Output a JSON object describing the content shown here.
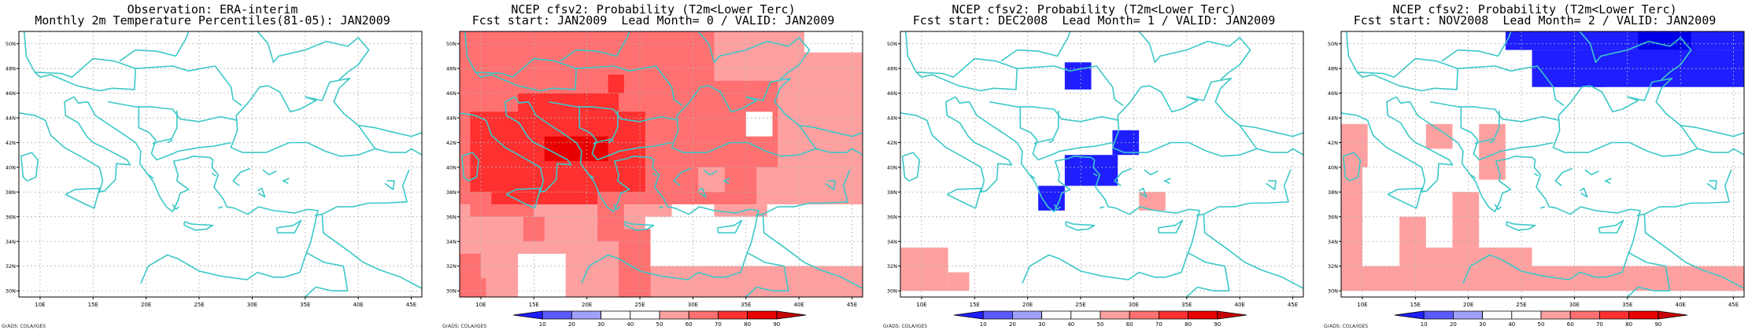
{
  "figure": {
    "credit": "GrADS: COLA/IGES",
    "colors": {
      "coast": "#3cc8c8",
      "grid": "#b4b4b4",
      "map_bg": "#ffffff"
    },
    "axes": {
      "lon_labels": [
        "10E",
        "15E",
        "20E",
        "25E",
        "30E",
        "35E",
        "40E",
        "45E"
      ],
      "lat_labels": [
        "30N",
        "32N",
        "34N",
        "36N",
        "38N",
        "40N",
        "42N",
        "44N",
        "46N",
        "48N",
        "50N"
      ],
      "lon_range": [
        8,
        46
      ],
      "lat_range": [
        29.5,
        51
      ]
    }
  },
  "colorbar": {
    "labels": [
      "10",
      "20",
      "30",
      "40",
      "50",
      "60",
      "70",
      "80",
      "90"
    ],
    "colors": [
      "#1e1eff",
      "#5a5aff",
      "#a0a0ff",
      "#ffffff",
      "#ffffff",
      "#ffa0a0",
      "#ff7070",
      "#ff3030",
      "#e80000",
      "#c80000"
    ]
  },
  "panels": [
    {
      "title_line1": "Observation: ERA-interim",
      "title_line2": "Monthly 2m Temperature Percentiles(81-05): JAN2009",
      "has_colorbar": false
    },
    {
      "title_line1": "NCEP cfsv2: Probability (T2m<Lower Terc)",
      "title_line2": "Fcst start: JAN2009  Lead Month= 0 / VALID: JAN2009",
      "has_colorbar": true
    },
    {
      "title_line1": "NCEP cfsv2: Probability (T2m<Lower Terc)",
      "title_line2": "Fcst start: DEC2008  Lead Month= 1 / VALID: JAN2009",
      "has_colorbar": true
    },
    {
      "title_line1": "NCEP cfsv2: Probability (T2m<Lower Terc)",
      "title_line2": "Fcst start: NOV2008  Lead Month= 2 / VALID: JAN2009",
      "has_colorbar": true
    }
  ]
}
